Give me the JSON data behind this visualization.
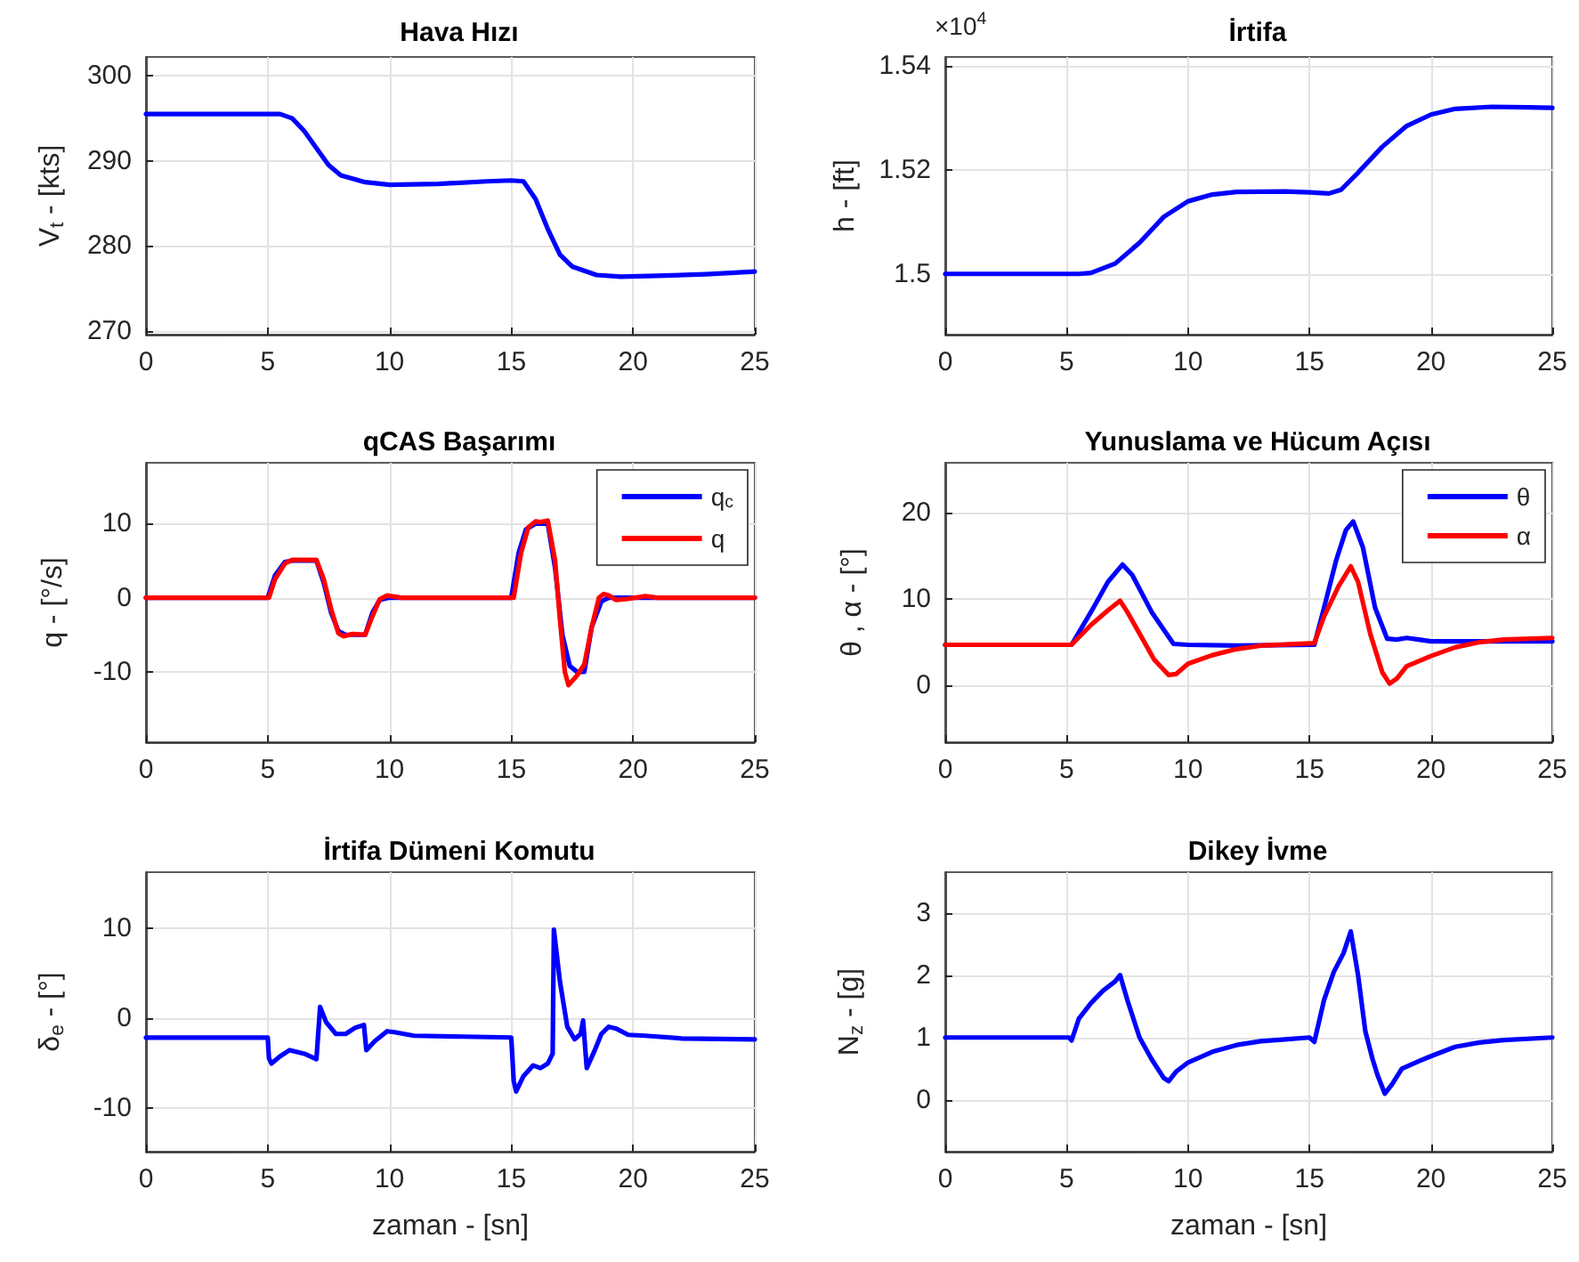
{
  "chart_data": [
    {
      "type": "line",
      "title": "Hava Hızı",
      "ylabel": "V$_{t}$ - [kts]",
      "xlim": [
        0,
        25
      ],
      "xticks": [
        0,
        5,
        10,
        15,
        20,
        25
      ],
      "ylim": [
        269.6,
        302.2
      ],
      "yticks": [
        270,
        280,
        290,
        300
      ],
      "grid": true,
      "legend": false,
      "series": [
        {
          "color": "#0000ff",
          "x": [
            0,
            5.5,
            6,
            6.5,
            7,
            7.5,
            8,
            9,
            10,
            12,
            14,
            15,
            15.5,
            16,
            16.5,
            17,
            17.5,
            18.5,
            19.5,
            21,
            23,
            25
          ],
          "values": [
            295.5,
            295.5,
            295,
            293.5,
            291.5,
            289.5,
            288.3,
            287.5,
            287.2,
            287.3,
            287.6,
            287.7,
            287.6,
            285.5,
            282,
            279,
            277.6,
            276.6,
            276.4,
            276.5,
            276.7,
            277
          ]
        }
      ]
    },
    {
      "type": "line",
      "title": "İrtifa",
      "ylabel": "h - [ft]",
      "annotations": [
        "×10$^{4}$"
      ],
      "xlim": [
        0,
        25
      ],
      "xticks": [
        0,
        5,
        10,
        15,
        20,
        25
      ],
      "ylim": [
        1.4883,
        1.5418
      ],
      "yticks": [
        1.5,
        1.52,
        1.54
      ],
      "grid": true,
      "legend": false,
      "series": [
        {
          "color": "#0000ff",
          "x": [
            0,
            5.5,
            6,
            7,
            8,
            9,
            10,
            11,
            12,
            14,
            15,
            15.8,
            16.3,
            17,
            18,
            19,
            20,
            21,
            22.5,
            24,
            25
          ],
          "values": [
            1.5,
            1.5,
            1.5002,
            1.502,
            1.506,
            1.511,
            1.514,
            1.5153,
            1.5158,
            1.5159,
            1.5157,
            1.5155,
            1.5162,
            1.5195,
            1.5245,
            1.5285,
            1.5307,
            1.5318,
            1.5322,
            1.5321,
            1.532
          ]
        }
      ]
    },
    {
      "type": "line",
      "title": "qCAS Başarımı",
      "ylabel": "q - [°/s]",
      "xlim": [
        0,
        25
      ],
      "xticks": [
        0,
        5,
        10,
        15,
        20,
        25
      ],
      "ylim": [
        -19.5,
        18.2
      ],
      "yticks": [
        -10,
        0,
        10
      ],
      "grid": true,
      "legend": "top right",
      "series": [
        {
          "name": "q$_{c}$",
          "color": "#0000ff",
          "x": [
            0,
            5,
            5.3,
            5.7,
            6,
            7,
            7.3,
            7.6,
            7.9,
            8.2,
            9,
            9.3,
            9.6,
            10,
            15,
            15.3,
            15.6,
            16,
            16.5,
            16.8,
            17.1,
            17.4,
            17.7,
            18,
            18.3,
            18.7,
            19,
            25
          ],
          "values": [
            0,
            0,
            3,
            4.8,
            5,
            5,
            2,
            -2,
            -4.5,
            -5,
            -5,
            -2,
            -0.3,
            0,
            0,
            6,
            9.2,
            10,
            10,
            4,
            -5,
            -9.2,
            -10,
            -10,
            -4,
            -0.5,
            0,
            0
          ]
        },
        {
          "name": "q",
          "color": "#ff0000",
          "x": [
            0,
            5.05,
            5.3,
            5.7,
            6,
            7,
            7.3,
            7.6,
            7.9,
            8.1,
            8.5,
            9,
            9.3,
            9.6,
            9.9,
            10.5,
            15.1,
            15.4,
            15.7,
            16,
            16.2,
            16.5,
            16.8,
            17,
            17.2,
            17.35,
            17.7,
            18,
            18.3,
            18.6,
            18.8,
            19,
            19.3,
            19.7,
            20.5,
            21,
            25
          ],
          "values": [
            0,
            0,
            2.5,
            4.6,
            5.1,
            5.1,
            2.5,
            -1.5,
            -4.8,
            -5.2,
            -4.9,
            -5,
            -2.5,
            -0.2,
            0.3,
            0,
            0,
            6,
            9.5,
            10.3,
            10.2,
            10.4,
            5,
            -3,
            -10,
            -11.8,
            -10.5,
            -9,
            -4,
            0,
            0.5,
            0.3,
            -0.3,
            -0.2,
            0.2,
            0,
            0
          ]
        }
      ]
    },
    {
      "type": "line",
      "title": "Yunuslama ve Hücum Açısı",
      "ylabel": "θ , α - [°]",
      "xlim": [
        0,
        25
      ],
      "xticks": [
        0,
        5,
        10,
        15,
        20,
        25
      ],
      "ylim": [
        -6.6,
        25.8
      ],
      "yticks": [
        0,
        10,
        20
      ],
      "grid": true,
      "legend": "top right",
      "series": [
        {
          "name": "θ",
          "color": "#0000ff",
          "x": [
            0,
            5.2,
            6,
            6.7,
            7.3,
            7.7,
            8.5,
            9.4,
            10,
            12,
            15.2,
            15.6,
            16.1,
            16.5,
            16.8,
            17.2,
            17.7,
            18.2,
            18.6,
            19,
            19.5,
            20,
            25
          ],
          "values": [
            4.7,
            4.7,
            8.5,
            12,
            14,
            12.8,
            8.5,
            4.8,
            4.7,
            4.6,
            4.7,
            9,
            14.5,
            18,
            19,
            16,
            9,
            5.4,
            5.3,
            5.5,
            5.3,
            5.1,
            5.1
          ]
        },
        {
          "name": "α",
          "color": "#ff0000",
          "x": [
            0,
            5.2,
            6,
            6.7,
            7.2,
            7.5,
            8,
            8.6,
            9.2,
            9.5,
            10,
            11,
            12,
            13,
            15.2,
            15.6,
            16.2,
            16.7,
            17,
            17.5,
            18,
            18.3,
            18.6,
            19,
            20,
            21,
            22,
            23,
            25
          ],
          "values": [
            4.7,
            4.7,
            7,
            8.7,
            9.8,
            8.5,
            6,
            3,
            1.2,
            1.3,
            2.5,
            3.5,
            4.2,
            4.6,
            4.9,
            8,
            11.5,
            13.8,
            12,
            6,
            1.5,
            0.2,
            0.8,
            2.2,
            3.4,
            4.4,
            5,
            5.3,
            5.5
          ]
        }
      ]
    },
    {
      "type": "line",
      "title": "İrtifa Dümeni Komutu",
      "xlabel": "zaman - [sn]",
      "ylabel": "δ$_{e}$ - [°]",
      "xlim": [
        0,
        25
      ],
      "xticks": [
        0,
        5,
        10,
        15,
        20,
        25
      ],
      "ylim": [
        -14.9,
        16.2
      ],
      "yticks": [
        -10,
        0,
        10
      ],
      "grid": true,
      "legend": false,
      "series": [
        {
          "color": "#0000ff",
          "x": [
            0,
            5,
            5.05,
            5.15,
            5.5,
            5.9,
            6.5,
            7,
            7.15,
            7.4,
            7.8,
            8.2,
            8.6,
            8.95,
            9.05,
            9.4,
            9.9,
            10.2,
            11,
            13,
            15,
            15.1,
            15.2,
            15.5,
            15.9,
            16.2,
            16.5,
            16.7,
            16.75,
            17,
            17.3,
            17.6,
            17.85,
            17.95,
            18.1,
            18.4,
            18.7,
            19,
            19.3,
            19.8,
            20.5,
            22,
            25
          ],
          "values": [
            -2.2,
            -2.2,
            -4.5,
            -5.1,
            -4.3,
            -3.6,
            -4,
            -4.6,
            1.2,
            -0.5,
            -1.8,
            -1.8,
            -1.1,
            -0.8,
            -3.6,
            -2.6,
            -1.5,
            -1.6,
            -2,
            -2.1,
            -2.2,
            -7,
            -8.2,
            -6.5,
            -5.3,
            -5.6,
            -5.1,
            -4,
            9.8,
            4,
            -1,
            -2.4,
            -1.8,
            -0.3,
            -5.6,
            -3.8,
            -1.8,
            -1,
            -1.2,
            -1.9,
            -2,
            -2.3,
            -2.4
          ]
        }
      ]
    },
    {
      "type": "line",
      "title": "Dikey İvme",
      "xlabel": "zaman - [sn]",
      "ylabel": "N$_{z}$ - [g]",
      "xlim": [
        0,
        25
      ],
      "xticks": [
        0,
        5,
        10,
        15,
        20,
        25
      ],
      "ylim": [
        -0.83,
        3.65
      ],
      "yticks": [
        0,
        1,
        2,
        3
      ],
      "grid": true,
      "legend": false,
      "series": [
        {
          "color": "#0000ff",
          "x": [
            0,
            5.1,
            5.2,
            5.5,
            6,
            6.5,
            7,
            7.2,
            7.5,
            8,
            8.5,
            9,
            9.2,
            9.5,
            10,
            11,
            12,
            13,
            14,
            15,
            15.2,
            15.6,
            16,
            16.4,
            16.7,
            17,
            17.3,
            17.6,
            17.8,
            18.1,
            18.4,
            18.8,
            19.5,
            20,
            21,
            22,
            23,
            25
          ],
          "values": [
            1,
            1,
            0.95,
            1.3,
            1.55,
            1.75,
            1.9,
            2,
            1.6,
            1,
            0.65,
            0.35,
            0.3,
            0.45,
            0.6,
            0.77,
            0.88,
            0.94,
            0.97,
            1,
            0.93,
            1.6,
            2.05,
            2.35,
            2.7,
            2,
            1.1,
            0.65,
            0.4,
            0.1,
            0.25,
            0.5,
            0.62,
            0.7,
            0.85,
            0.92,
            0.96,
            1
          ]
        }
      ]
    }
  ]
}
